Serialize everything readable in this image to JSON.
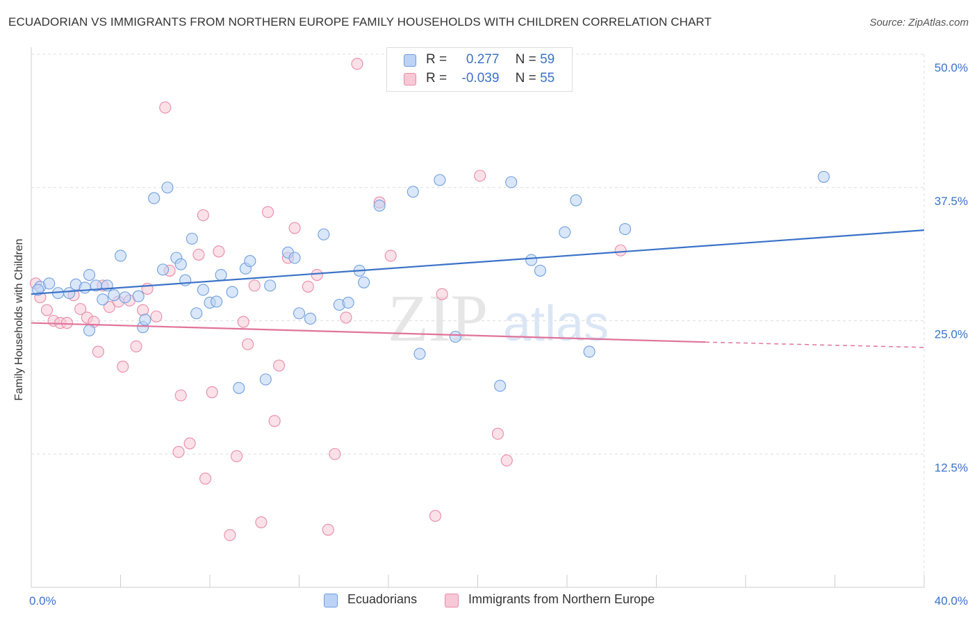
{
  "title": "ECUADORIAN VS IMMIGRANTS FROM NORTHERN EUROPE FAMILY HOUSEHOLDS WITH CHILDREN CORRELATION CHART",
  "source": "Source: ZipAtlas.com",
  "watermark": {
    "zip": "ZIP",
    "atlas": "atlas"
  },
  "legend_top": {
    "r_label": "R =",
    "n_label": "N =",
    "rows": [
      {
        "r": "0.277",
        "n": "59"
      },
      {
        "r": "-0.039",
        "n": "55"
      }
    ]
  },
  "chart_data": {
    "type": "scatter",
    "ylabel": "Family Households with Children",
    "xlim": [
      0,
      40
    ],
    "ylim": [
      0,
      50
    ],
    "x_tick_labels": [
      "0.0%",
      "40.0%"
    ],
    "y_ticks": [
      {
        "value": 12.5,
        "label": "12.5%"
      },
      {
        "value": 25.0,
        "label": "25.0%"
      },
      {
        "value": 37.5,
        "label": "37.5%"
      },
      {
        "value": 50.0,
        "label": "50.0%"
      }
    ],
    "colors": {
      "blue_fill": "#bcd3f5",
      "blue_stroke": "#6f9ee0",
      "blue_line": "#3a72c9",
      "pink_fill": "#f8c8d6",
      "pink_stroke": "#e98aa8",
      "pink_line": "#e0739a",
      "tick_label": "#3a72c9",
      "grid": "#dddddd"
    },
    "series": [
      {
        "name": "Ecuadorians",
        "color": "#6f9ee0",
        "trend": {
          "x": [
            0,
            40
          ],
          "y": [
            27.5,
            33.5
          ]
        },
        "points": [
          [
            0.4,
            28.2
          ],
          [
            0.8,
            28.5
          ],
          [
            1.2,
            27.6
          ],
          [
            1.7,
            27.6
          ],
          [
            2.0,
            28.4
          ],
          [
            2.4,
            28.1
          ],
          [
            2.6,
            24.1
          ],
          [
            2.6,
            29.3
          ],
          [
            2.9,
            28.3
          ],
          [
            3.2,
            27.0
          ],
          [
            3.4,
            28.3
          ],
          [
            3.7,
            27.4
          ],
          [
            4.0,
            31.1
          ],
          [
            4.2,
            27.2
          ],
          [
            4.8,
            27.3
          ],
          [
            5.0,
            24.4
          ],
          [
            5.1,
            25.1
          ],
          [
            5.5,
            36.5
          ],
          [
            5.9,
            29.8
          ],
          [
            6.1,
            37.5
          ],
          [
            6.5,
            30.9
          ],
          [
            6.7,
            30.3
          ],
          [
            6.9,
            28.8
          ],
          [
            7.2,
            32.7
          ],
          [
            7.4,
            25.7
          ],
          [
            7.7,
            27.9
          ],
          [
            8.0,
            26.7
          ],
          [
            8.3,
            26.8
          ],
          [
            8.5,
            29.3
          ],
          [
            9.0,
            27.7
          ],
          [
            9.3,
            18.7
          ],
          [
            9.6,
            29.9
          ],
          [
            9.8,
            30.6
          ],
          [
            10.5,
            19.5
          ],
          [
            10.7,
            28.3
          ],
          [
            11.5,
            31.4
          ],
          [
            11.8,
            30.9
          ],
          [
            12.0,
            25.7
          ],
          [
            12.5,
            25.2
          ],
          [
            13.1,
            33.1
          ],
          [
            13.8,
            26.5
          ],
          [
            14.2,
            26.7
          ],
          [
            14.7,
            29.7
          ],
          [
            14.9,
            28.6
          ],
          [
            15.6,
            35.8
          ],
          [
            17.1,
            37.1
          ],
          [
            17.4,
            21.9
          ],
          [
            18.3,
            38.2
          ],
          [
            19.0,
            23.5
          ],
          [
            21.0,
            18.9
          ],
          [
            21.5,
            38.0
          ],
          [
            22.4,
            30.7
          ],
          [
            22.8,
            29.7
          ],
          [
            23.9,
            33.3
          ],
          [
            24.4,
            36.3
          ],
          [
            25.0,
            22.1
          ],
          [
            26.6,
            33.6
          ],
          [
            35.5,
            38.5
          ],
          [
            0.3,
            27.9
          ]
        ]
      },
      {
        "name": "Immigrants from Northern Europe",
        "color": "#e98aa8",
        "trend": {
          "x": [
            0,
            30.2
          ],
          "y": [
            24.8,
            23.0
          ]
        },
        "trend_ext": {
          "x": [
            30.2,
            40
          ],
          "y": [
            23.0,
            22.5
          ]
        },
        "points": [
          [
            0.2,
            28.5
          ],
          [
            0.4,
            27.2
          ],
          [
            0.7,
            26.0
          ],
          [
            1.0,
            25.0
          ],
          [
            1.3,
            24.8
          ],
          [
            1.6,
            24.8
          ],
          [
            1.9,
            27.4
          ],
          [
            2.2,
            26.1
          ],
          [
            2.5,
            25.3
          ],
          [
            2.8,
            24.9
          ],
          [
            3.0,
            22.1
          ],
          [
            3.2,
            28.3
          ],
          [
            3.5,
            26.3
          ],
          [
            3.9,
            26.8
          ],
          [
            4.1,
            20.7
          ],
          [
            4.4,
            26.9
          ],
          [
            4.7,
            22.6
          ],
          [
            5.0,
            26.0
          ],
          [
            5.2,
            28.0
          ],
          [
            5.6,
            25.4
          ],
          [
            6.0,
            45.0
          ],
          [
            6.2,
            29.7
          ],
          [
            6.6,
            12.7
          ],
          [
            6.7,
            18.0
          ],
          [
            7.1,
            13.5
          ],
          [
            7.5,
            31.2
          ],
          [
            7.7,
            34.9
          ],
          [
            7.8,
            10.2
          ],
          [
            8.1,
            18.3
          ],
          [
            8.4,
            31.5
          ],
          [
            8.9,
            4.9
          ],
          [
            9.2,
            12.3
          ],
          [
            9.5,
            24.9
          ],
          [
            9.7,
            22.8
          ],
          [
            10.0,
            28.3
          ],
          [
            10.3,
            6.1
          ],
          [
            10.6,
            35.2
          ],
          [
            10.9,
            15.6
          ],
          [
            11.1,
            20.8
          ],
          [
            11.5,
            30.9
          ],
          [
            11.8,
            33.7
          ],
          [
            12.4,
            28.2
          ],
          [
            12.8,
            29.3
          ],
          [
            13.3,
            5.4
          ],
          [
            13.6,
            12.5
          ],
          [
            14.1,
            25.3
          ],
          [
            14.6,
            49.1
          ],
          [
            15.6,
            36.1
          ],
          [
            16.1,
            31.1
          ],
          [
            18.1,
            6.7
          ],
          [
            18.4,
            27.5
          ],
          [
            20.1,
            38.6
          ],
          [
            20.9,
            14.4
          ],
          [
            21.3,
            11.9
          ],
          [
            26.4,
            31.6
          ]
        ]
      }
    ]
  },
  "legend_bottom": [
    {
      "label": "Ecuadorians"
    },
    {
      "label": "Immigrants from Northern Europe"
    }
  ]
}
